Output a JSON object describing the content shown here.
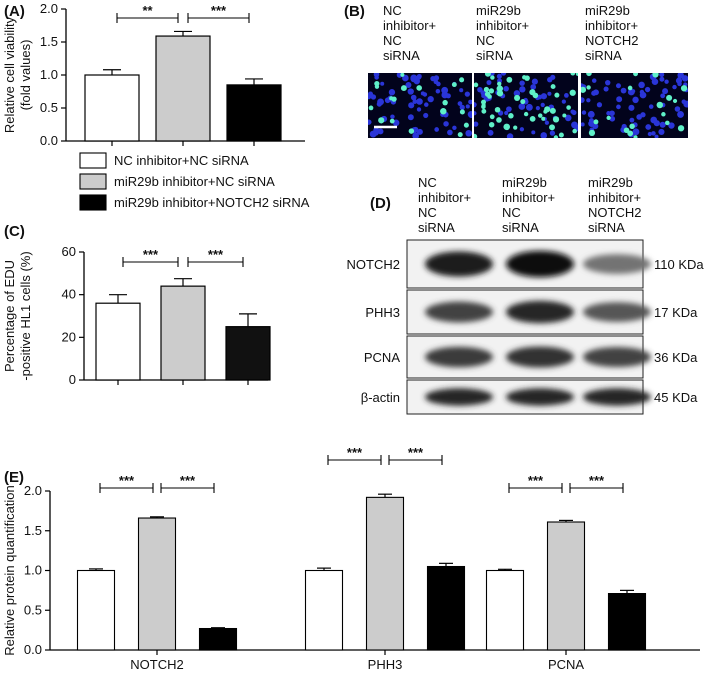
{
  "panels": {
    "A": "(A)",
    "B": "(B)",
    "C": "(C)",
    "D": "(D)",
    "E": "(E)"
  },
  "legend": [
    {
      "label": "NC inhibitor+NC siRNA",
      "color": "#ffffff"
    },
    {
      "label": "miR29b inhibitor+NC siRNA",
      "color": "#cccccc"
    },
    {
      "label": "miR29b inhibitor+NOTCH2 siRNA",
      "color": "#000000"
    }
  ],
  "group_labels": [
    [
      "NC",
      "inhibitor+",
      "NC",
      "siRNA"
    ],
    [
      "miR29b",
      "inhibitor+",
      "NC",
      "siRNA"
    ],
    [
      "miR29b",
      "inhibitor+",
      "NOTCH2",
      "siRNA"
    ]
  ],
  "blot": {
    "rows": [
      {
        "protein": "NOTCH2",
        "size": "110 KDa",
        "intensity": [
          0.9,
          1.0,
          0.45
        ]
      },
      {
        "protein": "PHH3",
        "size": "17 KDa",
        "intensity": [
          0.7,
          0.85,
          0.6
        ]
      },
      {
        "protein": "PCNA",
        "size": "36 KDa",
        "intensity": [
          0.75,
          0.8,
          0.7
        ]
      },
      {
        "protein": "β-actin",
        "size": "45 KDa",
        "intensity": [
          0.85,
          0.85,
          0.85
        ]
      }
    ]
  },
  "chart_data": [
    {
      "type": "bar",
      "panel": "A",
      "ylabel": "Relative cell viability (fold values)",
      "ylabel_lines": [
        "Relative cell viability",
        "(fold values)"
      ],
      "categories": [
        "NC inhibitor+NC siRNA",
        "miR29b inhibitor+NC siRNA",
        "miR29b inhibitor+NOTCH2 siRNA"
      ],
      "values": [
        1.0,
        1.59,
        0.85
      ],
      "errors": [
        0.08,
        0.07,
        0.09
      ],
      "ylim": [
        0,
        2.0
      ],
      "yticks": [
        "0.0",
        "0.5",
        "1.0",
        "1.5",
        "2.0"
      ],
      "colors": [
        "#ffffff",
        "#cccccc",
        "#000000"
      ],
      "significance": [
        {
          "from": 0,
          "to": 1,
          "label": "**"
        },
        {
          "from": 1,
          "to": 2,
          "label": "***"
        }
      ]
    },
    {
      "type": "bar",
      "panel": "C",
      "ylabel": "Percentage of EDU -positive HL1 cells (%)",
      "ylabel_lines": [
        "Percentage of EDU",
        "-positive HL1 cells (%)"
      ],
      "categories": [
        "NC inhibitor+NC siRNA",
        "miR29b inhibitor+NC siRNA",
        "miR29b inhibitor+NOTCH2 siRNA"
      ],
      "values": [
        36,
        44,
        25
      ],
      "errors": [
        4,
        3.5,
        6
      ],
      "ylim": [
        0,
        60
      ],
      "yticks": [
        "0",
        "20",
        "40",
        "60"
      ],
      "colors": [
        "#ffffff",
        "#cccccc",
        "#111111"
      ],
      "significance": [
        {
          "from": 0,
          "to": 1,
          "label": "***"
        },
        {
          "from": 1,
          "to": 2,
          "label": "***"
        }
      ]
    },
    {
      "type": "bar",
      "panel": "E",
      "ylabel": "Relative protein quantification",
      "categories": [
        "NOTCH2",
        "PHH3",
        "PCNA"
      ],
      "ylim": [
        0,
        2.0
      ],
      "yticks": [
        "0.0",
        "0.5",
        "1.0",
        "1.5",
        "2.0"
      ],
      "series": [
        {
          "name": "NC inhibitor+NC siRNA",
          "color": "#ffffff",
          "values": [
            1.0,
            1.0,
            1.0
          ],
          "errors": [
            0.02,
            0.03,
            0.015
          ]
        },
        {
          "name": "miR29b inhibitor+NC siRNA",
          "color": "#cccccc",
          "values": [
            1.66,
            1.92,
            1.61
          ],
          "errors": [
            0.015,
            0.04,
            0.02
          ]
        },
        {
          "name": "miR29b inhibitor+NOTCH2 siRNA",
          "color": "#000000",
          "values": [
            0.27,
            1.05,
            0.71
          ],
          "errors": [
            0.01,
            0.04,
            0.04
          ]
        }
      ],
      "significance": [
        {
          "category": 0,
          "from": 0,
          "to": 1,
          "label": "***"
        },
        {
          "category": 0,
          "from": 1,
          "to": 2,
          "label": "***"
        },
        {
          "category": 1,
          "from": 0,
          "to": 1,
          "label": "***"
        },
        {
          "category": 1,
          "from": 1,
          "to": 2,
          "label": "***"
        },
        {
          "category": 2,
          "from": 0,
          "to": 1,
          "label": "***"
        },
        {
          "category": 2,
          "from": 1,
          "to": 2,
          "label": "***"
        }
      ]
    }
  ]
}
